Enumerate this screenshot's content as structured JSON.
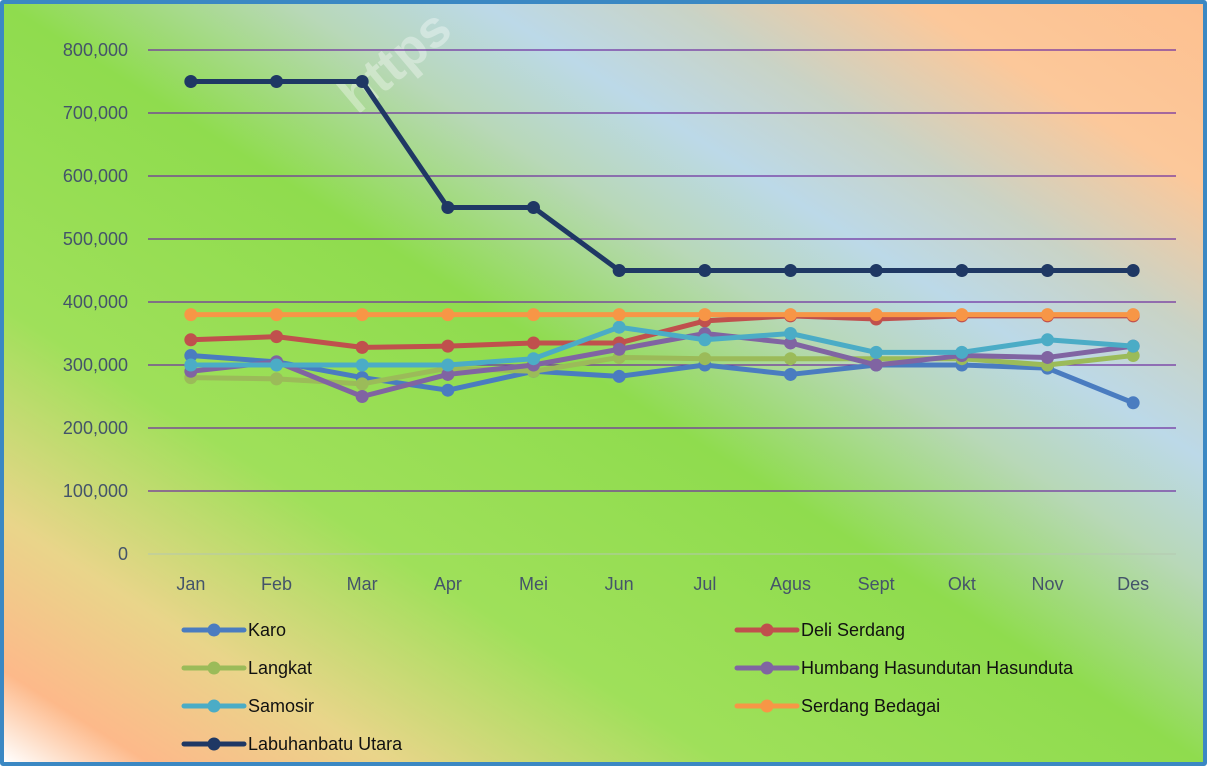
{
  "chart_data": {
    "type": "line",
    "title": "",
    "xlabel": "",
    "ylabel": "",
    "ylim": [
      0,
      800000
    ],
    "y_ticks": [
      "0",
      "100,000",
      "200,000",
      "300,000",
      "400,000",
      "500,000",
      "600,000",
      "700,000",
      "800,000"
    ],
    "y_tick_values": [
      0,
      100000,
      200000,
      300000,
      400000,
      500000,
      600000,
      700000,
      800000
    ],
    "categories": [
      "Jan",
      "Feb",
      "Mar",
      "Apr",
      "Mei",
      "Jun",
      "Jul",
      "Agus",
      "Sept",
      "Okt",
      "Nov",
      "Des"
    ],
    "grid": true,
    "legend_position": "bottom",
    "series": [
      {
        "name": "Karo",
        "color": "#4a7cc0",
        "values": [
          315000,
          305000,
          280000,
          260000,
          290000,
          282000,
          300000,
          285000,
          300000,
          300000,
          295000,
          240000
        ]
      },
      {
        "name": "Deli Serdang",
        "color": "#c0504d",
        "values": [
          340000,
          345000,
          328000,
          330000,
          335000,
          335000,
          370000,
          378000,
          373000,
          378000,
          378000,
          378000
        ]
      },
      {
        "name": "Langkat",
        "color": "#9bbb59",
        "values": [
          280000,
          278000,
          270000,
          295000,
          290000,
          312000,
          310000,
          310000,
          310000,
          310000,
          300000,
          315000
        ]
      },
      {
        "name": "Humbang Hasundutan Hasunduta",
        "color": "#8064a2",
        "values": [
          290000,
          305000,
          250000,
          285000,
          300000,
          325000,
          350000,
          335000,
          300000,
          315000,
          312000,
          330000
        ]
      },
      {
        "name": "Samosir",
        "color": "#4bacc6",
        "values": [
          300000,
          300000,
          300000,
          300000,
          310000,
          360000,
          340000,
          350000,
          320000,
          320000,
          340000,
          330000
        ]
      },
      {
        "name": "Serdang Bedagai",
        "color": "#f79646",
        "values": [
          380000,
          380000,
          380000,
          380000,
          380000,
          380000,
          380000,
          380000,
          380000,
          380000,
          380000,
          380000
        ]
      },
      {
        "name": "Labuhanbatu Utara",
        "color": "#1f3864",
        "values": [
          750000,
          750000,
          750000,
          550000,
          550000,
          450000,
          450000,
          450000,
          450000,
          450000,
          450000,
          450000
        ]
      }
    ]
  },
  "watermark": "https",
  "colors": {
    "gridline": "#7030a0",
    "frame": "#3b88c3"
  }
}
